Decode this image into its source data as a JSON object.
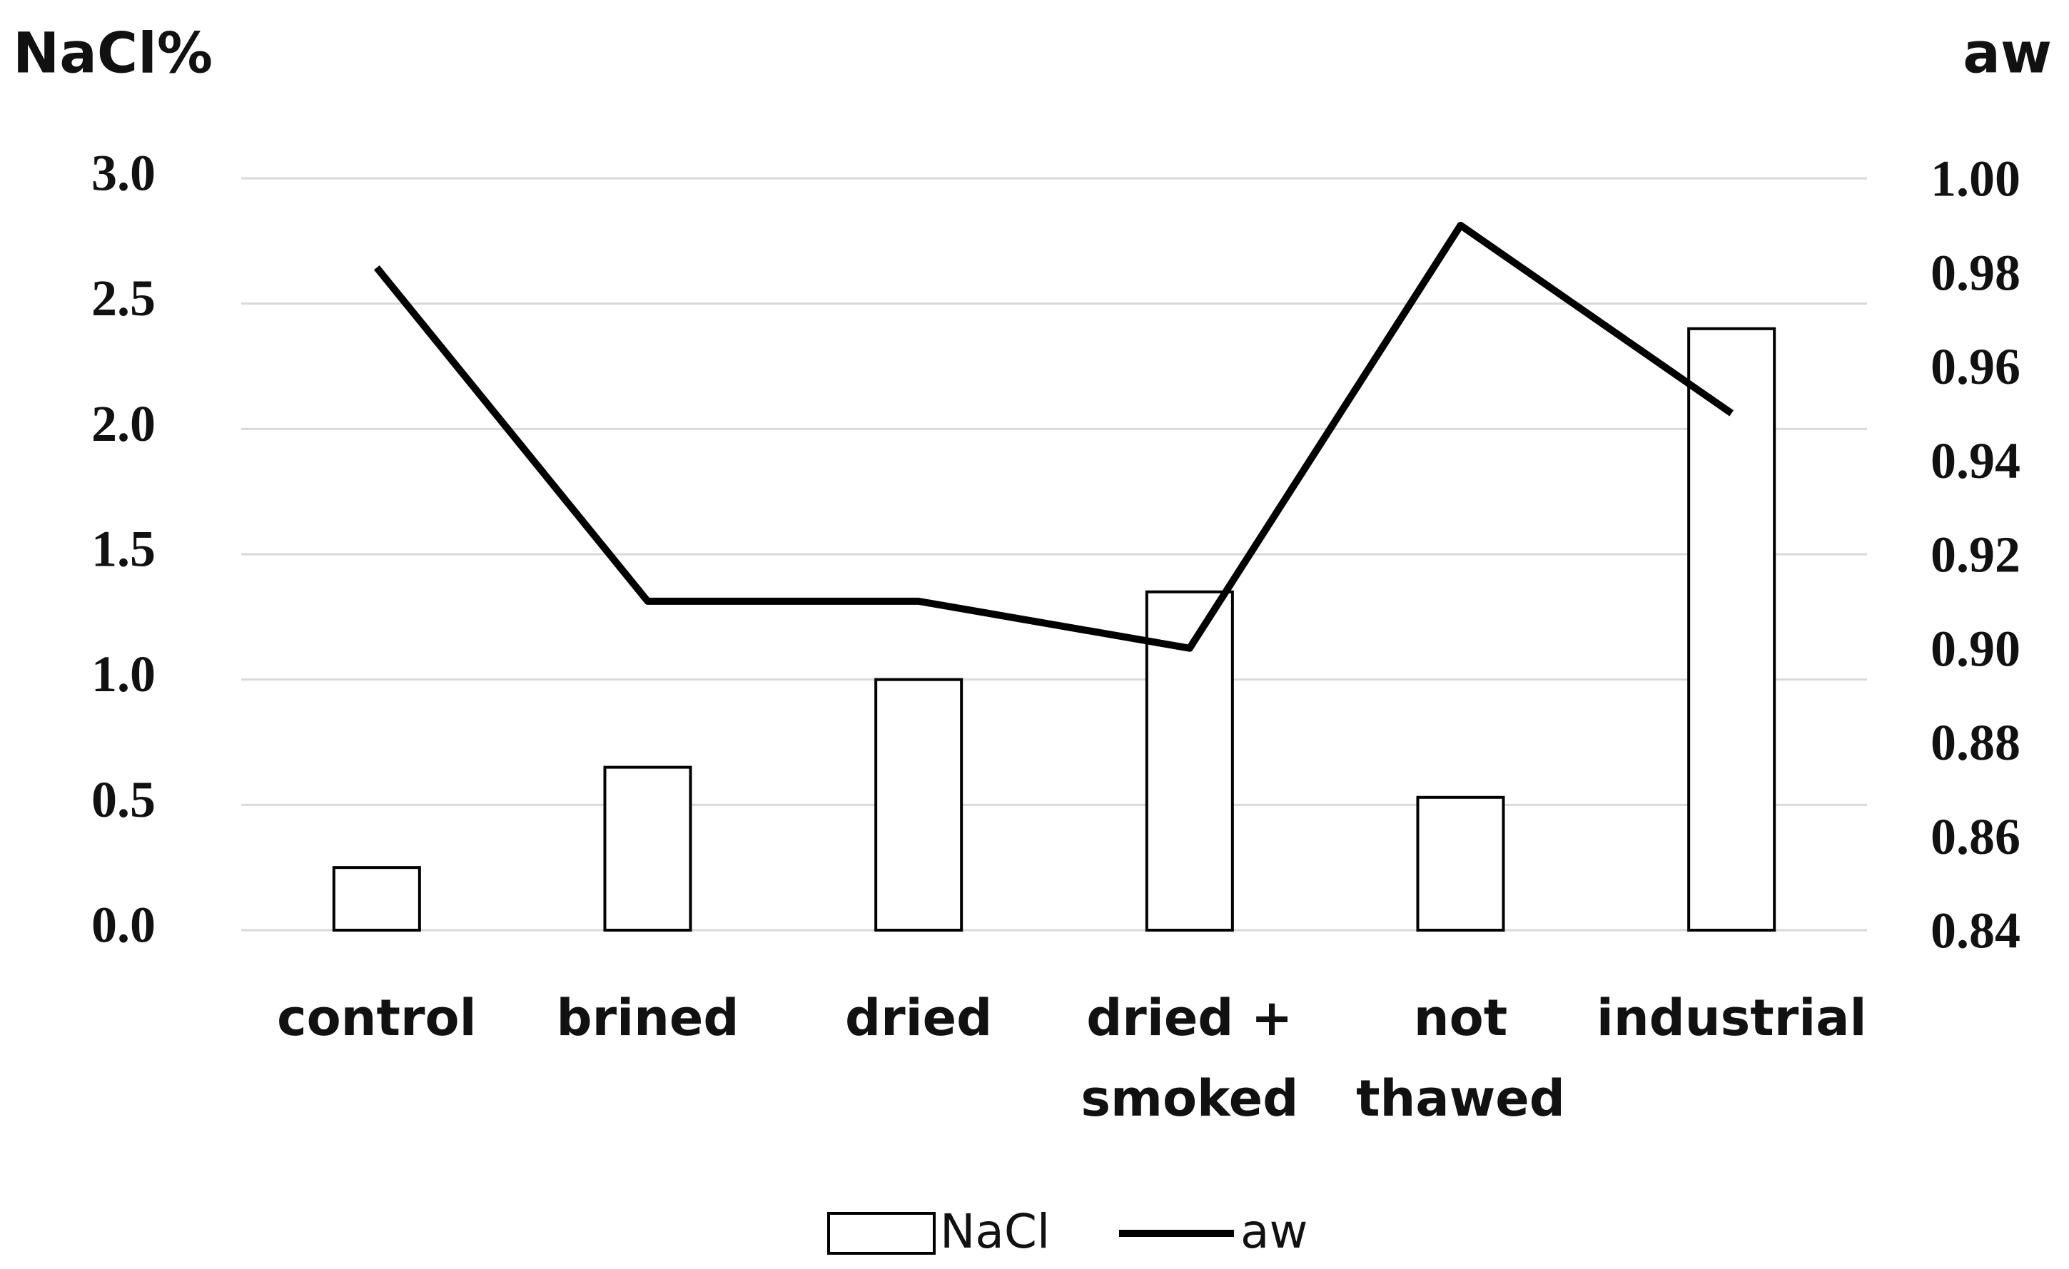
{
  "chart_data": {
    "type": "bar-line",
    "y_label": "NaCl%",
    "y2_label": "aw",
    "categories": [
      "control",
      "brined",
      "dried",
      "dried +\nsmoked",
      "not\nthawed",
      "industrial"
    ],
    "series": [
      {
        "name": "NaCl",
        "type": "bar",
        "color": "#000000",
        "fill": "#ffffff",
        "values": [
          0.25,
          0.65,
          1.0,
          1.35,
          0.53,
          2.4
        ]
      },
      {
        "name": "aw",
        "type": "line",
        "axis": "y2",
        "color": "#000000",
        "values": [
          0.981,
          0.91,
          0.91,
          0.9,
          0.99,
          0.95
        ]
      }
    ],
    "ylim": [
      0,
      3
    ],
    "yticks": [
      {
        "value": 0,
        "label": "0.0"
      },
      {
        "value": 0.5,
        "label": "0.5"
      },
      {
        "value": 1,
        "label": "1.0"
      },
      {
        "value": 1.5,
        "label": "1.5"
      },
      {
        "value": 2,
        "label": "2.0"
      },
      {
        "value": 2.5,
        "label": "2.5"
      },
      {
        "value": 3,
        "label": "3.0"
      }
    ],
    "y2lim": [
      0.84,
      1
    ],
    "y2ticks": [
      0.84,
      0.86,
      0.88,
      {
        "value": 0.9,
        "label": "0.90"
      },
      0.92,
      0.94,
      0.96,
      0.98,
      {
        "value": 1,
        "label": "1.00"
      }
    ],
    "grid": true,
    "legend": "bottom"
  }
}
